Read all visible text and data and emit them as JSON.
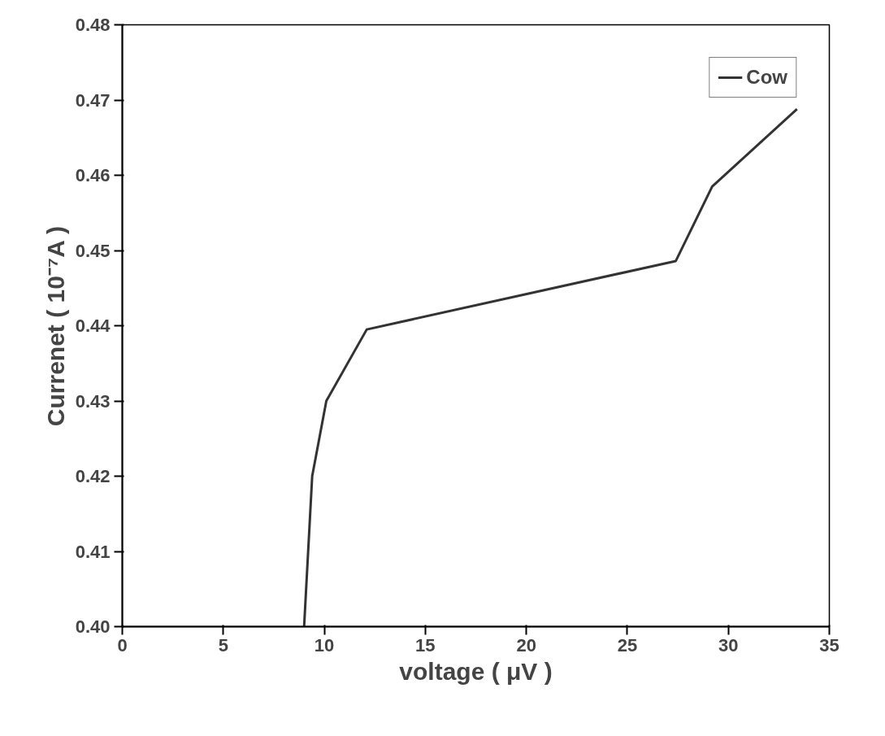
{
  "chart_data": {
    "type": "line",
    "xlabel": "voltage ( μV )",
    "ylabel": "Currenet ( 10⁻⁷A )",
    "x": [
      9.0,
      9.4,
      10.1,
      12.1,
      27.4,
      29.2,
      33.4
    ],
    "series": [
      {
        "name": "Cow",
        "color": "#333333",
        "values": [
          0.4,
          0.42,
          0.43,
          0.4395,
          0.4486,
          0.4585,
          0.4688
        ]
      }
    ],
    "xlim": [
      0,
      35
    ],
    "xticks": [
      0,
      5,
      10,
      15,
      20,
      25,
      30,
      35
    ],
    "ylim": [
      0.4,
      0.48
    ],
    "yticks": [
      {
        "value": 0.4,
        "label": "0.40"
      },
      0.41,
      0.42,
      0.43,
      0.44,
      0.45,
      0.46,
      0.47,
      0.48
    ],
    "grid": false,
    "legend": "top right",
    "marker": "none",
    "line_style": "solid"
  }
}
